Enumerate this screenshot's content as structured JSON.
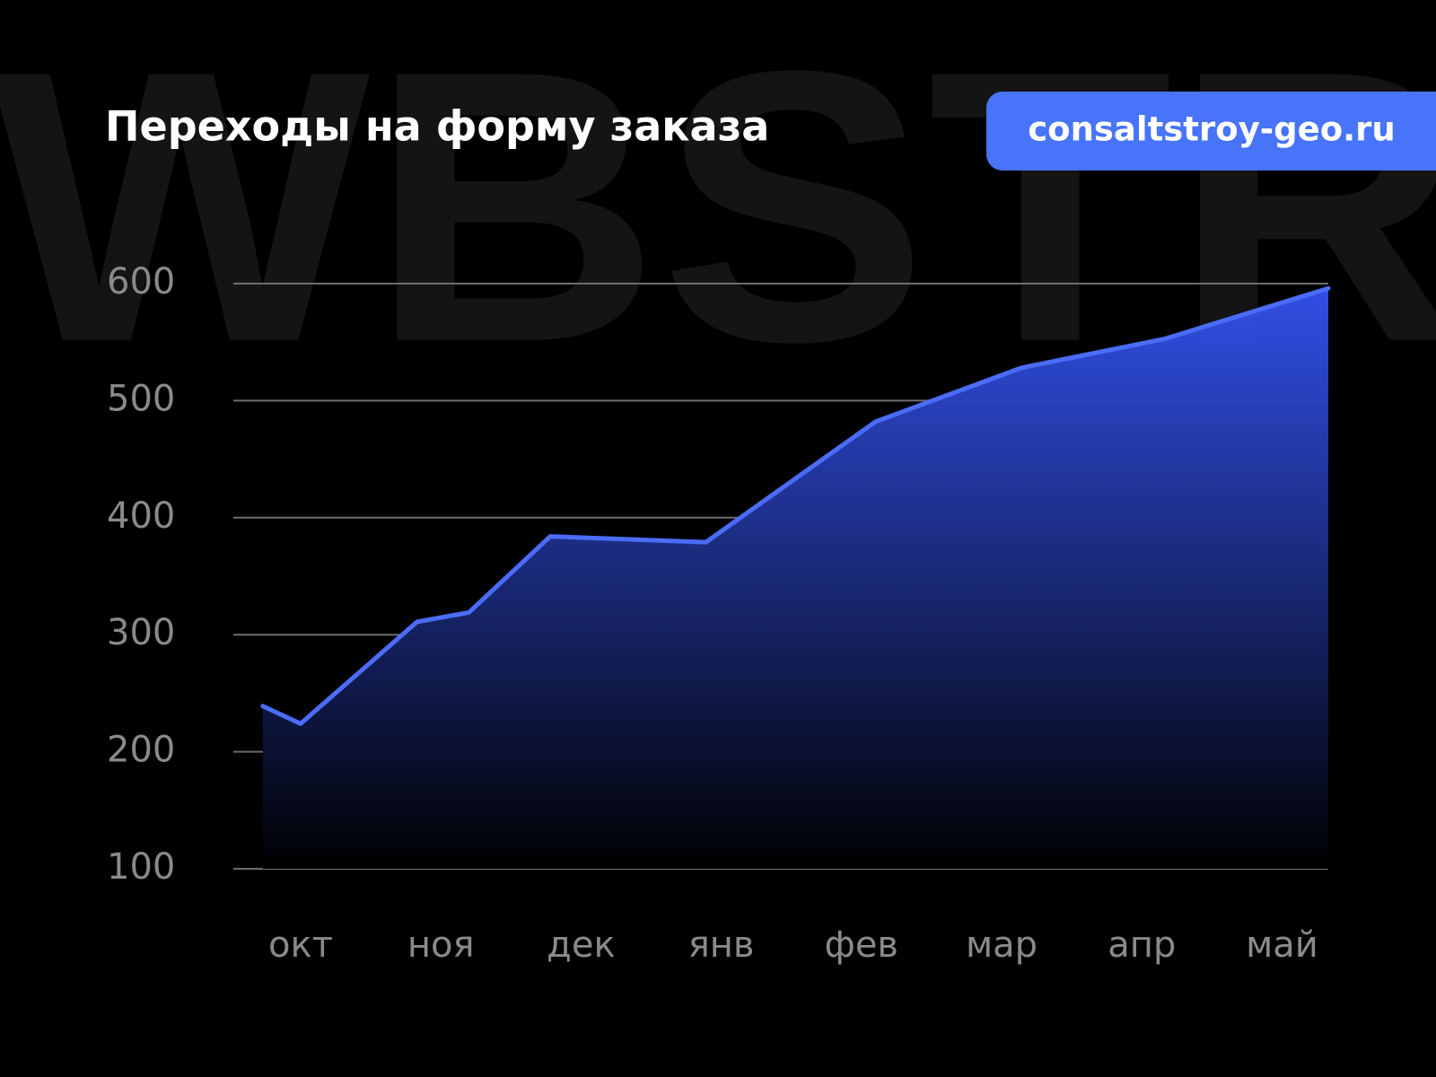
{
  "watermark": "WBSTR",
  "badge": "consaltstroy-geo.ru",
  "chart_data": {
    "type": "area",
    "title": "Переходы на форму заказа",
    "x": [
      -0.27,
      0.0,
      0.83,
      1.2,
      1.78,
      2.89,
      4.1,
      5.14,
      6.17,
      7.33
    ],
    "series": [
      {
        "color": "#4a6cf7",
        "values": [
          239,
          224,
          311,
          319,
          384,
          379,
          482,
          528,
          553,
          596
        ]
      }
    ],
    "xlim": [
      -0.48,
      7.33
    ],
    "xticks": [
      {
        "value": 0,
        "label": "окт"
      },
      {
        "value": 1,
        "label": "ноя"
      },
      {
        "value": 2,
        "label": "дек"
      },
      {
        "value": 3,
        "label": "янв"
      },
      {
        "value": 4,
        "label": "фев"
      },
      {
        "value": 5,
        "label": "мар"
      },
      {
        "value": 6,
        "label": "апр"
      },
      {
        "value": 7,
        "label": "май"
      }
    ],
    "ylim": [
      100,
      600
    ],
    "yticks": [
      100,
      200,
      300,
      400,
      500,
      600
    ],
    "grid": true
  }
}
